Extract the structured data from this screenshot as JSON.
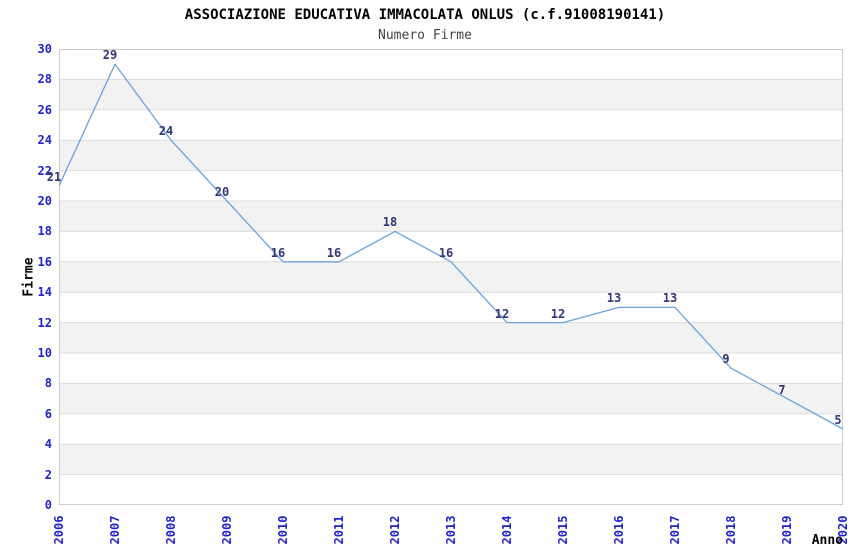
{
  "chart_data": {
    "type": "line",
    "title": "ASSOCIAZIONE EDUCATIVA IMMACOLATA ONLUS (c.f.91008190141)",
    "subtitle": "Numero Firme",
    "xlabel": "Anno",
    "ylabel": "Firme",
    "categories": [
      "2006",
      "2007",
      "2008",
      "2009",
      "2010",
      "2011",
      "2012",
      "2013",
      "2014",
      "2015",
      "2016",
      "2017",
      "2018",
      "2019",
      "2020"
    ],
    "values": [
      21,
      29,
      24,
      20,
      16,
      16,
      18,
      16,
      12,
      12,
      13,
      13,
      9,
      7,
      5
    ],
    "ylim": [
      0,
      30
    ],
    "ytick_step": 2,
    "grid": true,
    "alternating_bands": true,
    "legend": "none",
    "colors": {
      "line": "#69a3de",
      "tick_labels": "#2222cc",
      "value_labels": "#333377",
      "band": "#f2f2f2",
      "gridline": "#dcdcdc",
      "border": "#cccccc",
      "title": "#000000",
      "subtitle": "#444444"
    }
  }
}
